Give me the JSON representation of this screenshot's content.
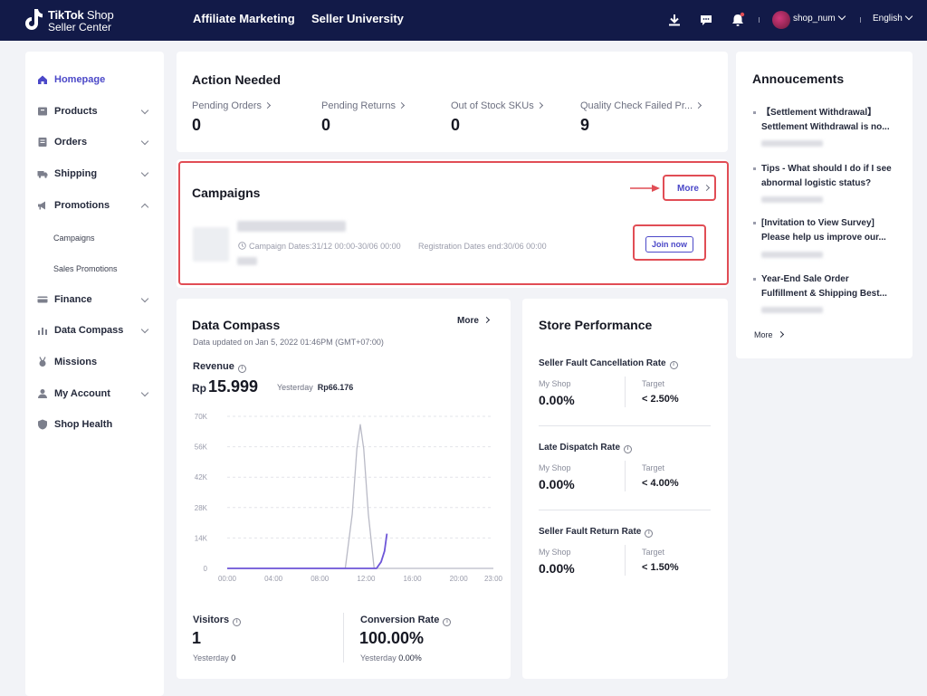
{
  "brand": {
    "line1_bold": "TikTok",
    "line1_rest": " Shop",
    "line2": "Seller Center"
  },
  "topnav": {
    "affiliate": "Affiliate Marketing",
    "university": "Seller University"
  },
  "topbar": {
    "user": "shop_num",
    "language": "English",
    "icons": [
      "download-icon",
      "chat-icon",
      "bell-icon"
    ]
  },
  "sidebar": {
    "items": [
      {
        "label": "Homepage",
        "icon": "home-icon",
        "active": true
      },
      {
        "label": "Products",
        "icon": "box-icon"
      },
      {
        "label": "Orders",
        "icon": "orders-icon"
      },
      {
        "label": "Shipping",
        "icon": "truck-icon"
      },
      {
        "label": "Promotions",
        "icon": "megaphone-icon",
        "expanded": true
      },
      {
        "label": "Finance",
        "icon": "card-icon"
      },
      {
        "label": "Data Compass",
        "icon": "chart-icon"
      },
      {
        "label": "Missions",
        "icon": "medal-icon"
      },
      {
        "label": "My Account",
        "icon": "user-icon"
      },
      {
        "label": "Shop Health",
        "icon": "shield-icon"
      }
    ],
    "promotions_sub": [
      "Campaigns",
      "Sales Promotions"
    ]
  },
  "action_needed": {
    "title": "Action Needed",
    "kpis": [
      {
        "label": "Pending Orders",
        "value": "0"
      },
      {
        "label": "Pending Returns",
        "value": "0"
      },
      {
        "label": "Out of Stock SKUs",
        "value": "0"
      },
      {
        "label": "Quality Check Failed Pr...",
        "value": "9"
      }
    ]
  },
  "campaigns": {
    "title": "Campaigns",
    "more": "More",
    "campaign_dates": "Campaign Dates:31/12 00:00-30/06 00:00",
    "registration_end": "Registration Dates end:30/06 00:00",
    "join": "Join now"
  },
  "data_compass": {
    "title": "Data Compass",
    "more": "More",
    "updated": "Data updated on Jan 5, 2022 01:46PM (GMT+07:00)",
    "revenue": {
      "label": "Revenue",
      "currency": "Rp",
      "value": "15.999",
      "yesterday_label": "Yesterday",
      "yesterday_value": "Rp66.176"
    },
    "visitors": {
      "label": "Visitors",
      "value": "1",
      "yesterday_label": "Yesterday",
      "yesterday_value": "0"
    },
    "conversion": {
      "label": "Conversion Rate",
      "value": "100.00%",
      "yesterday_label": "Yesterday",
      "yesterday_value": "0.00%"
    }
  },
  "chart_data": {
    "type": "line",
    "x": [
      "00:00",
      "04:00",
      "08:00",
      "12:00",
      "16:00",
      "20:00",
      "23:00"
    ],
    "y_ticks": [
      "0",
      "14K",
      "28K",
      "42K",
      "56K",
      "70K"
    ],
    "ylim": [
      0,
      70000
    ],
    "xlim": [
      0,
      23
    ],
    "grid": true,
    "series": [
      {
        "color": "#b9bac6",
        "points": [
          [
            0,
            0
          ],
          [
            10.2,
            0
          ],
          [
            10.8,
            25000
          ],
          [
            11.2,
            55000
          ],
          [
            11.5,
            66176
          ],
          [
            11.8,
            55000
          ],
          [
            12.2,
            25000
          ],
          [
            12.7,
            0
          ],
          [
            23,
            0
          ]
        ]
      },
      {
        "color": "#6e56d8",
        "points": [
          [
            0,
            0
          ],
          [
            12.9,
            0
          ],
          [
            13.3,
            3000
          ],
          [
            13.6,
            8000
          ],
          [
            13.8,
            15999
          ]
        ]
      }
    ]
  },
  "store_performance": {
    "title": "Store Performance",
    "my_shop_label": "My Shop",
    "target_label": "Target",
    "metrics": [
      {
        "label": "Seller Fault Cancellation Rate",
        "my_shop": "0.00%",
        "target": "< 2.50%"
      },
      {
        "label": "Late Dispatch Rate",
        "my_shop": "0.00%",
        "target": "< 4.00%"
      },
      {
        "label": "Seller Fault Return Rate",
        "my_shop": "0.00%",
        "target": "< 1.50%"
      }
    ]
  },
  "announcements": {
    "title": "Annoucements",
    "items": [
      {
        "line1": "【Settlement Withdrawal】",
        "line2": "Settlement Withdrawal is no..."
      },
      {
        "line1": "Tips - What should I do if I see",
        "line2": "abnormal logistic status?"
      },
      {
        "line1": "[Invitation to View Survey]",
        "line2": "Please help us improve our..."
      },
      {
        "line1": "Year-End Sale Order",
        "line2": "Fulfillment & Shipping Best..."
      }
    ],
    "more": "More"
  },
  "colors": {
    "topbar": "#121a48",
    "accent": "#4b48c8",
    "highlight": "#e14d55"
  }
}
